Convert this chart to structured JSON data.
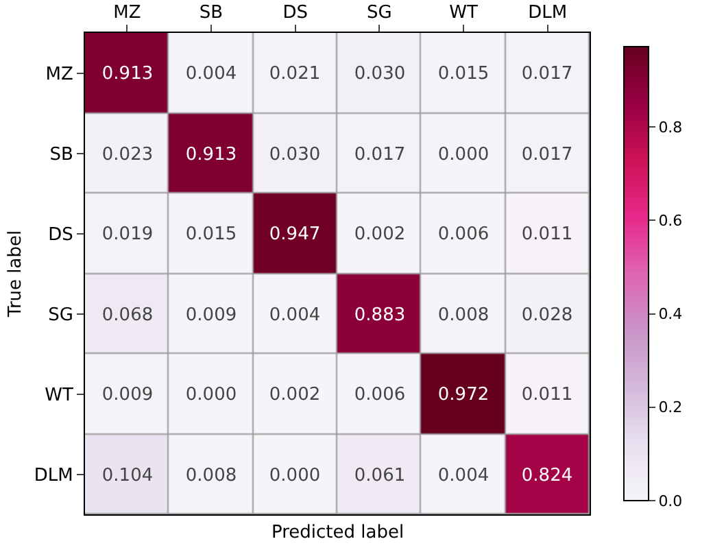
{
  "chart_data": {
    "type": "heatmap",
    "xlabel": "Predicted label",
    "ylabel": "True label",
    "categories": [
      "MZ",
      "SB",
      "DS",
      "SG",
      "WT",
      "DLM"
    ],
    "y_categories": [
      "MZ",
      "SB",
      "DS",
      "SG",
      "WT",
      "DLM"
    ],
    "cells": [
      [
        0.913,
        0.004,
        0.021,
        0.03,
        0.015,
        0.017
      ],
      [
        0.023,
        0.913,
        0.03,
        0.017,
        0.0,
        0.017
      ],
      [
        0.019,
        0.015,
        0.947,
        0.002,
        0.006,
        0.011
      ],
      [
        0.068,
        0.009,
        0.004,
        0.883,
        0.008,
        0.028
      ],
      [
        0.009,
        0.0,
        0.002,
        0.006,
        0.972,
        0.011
      ],
      [
        0.104,
        0.008,
        0.0,
        0.061,
        0.004,
        0.824
      ]
    ],
    "cell_labels": [
      [
        "0.913",
        "0.004",
        "0.021",
        "0.030",
        "0.015",
        "0.017"
      ],
      [
        "0.023",
        "0.913",
        "0.030",
        "0.017",
        "0.000",
        "0.017"
      ],
      [
        "0.019",
        "0.015",
        "0.947",
        "0.002",
        "0.006",
        "0.011"
      ],
      [
        "0.068",
        "0.009",
        "0.004",
        "0.883",
        "0.008",
        "0.028"
      ],
      [
        "0.009",
        "0.000",
        "0.002",
        "0.006",
        "0.972",
        "0.011"
      ],
      [
        "0.104",
        "0.008",
        "0.000",
        "0.061",
        "0.004",
        "0.824"
      ]
    ],
    "clim": [
      0,
      0.972
    ],
    "cticks": [
      {
        "value": 0,
        "label": "0.0"
      },
      0.2,
      0.4,
      0.6,
      0.8
    ]
  }
}
